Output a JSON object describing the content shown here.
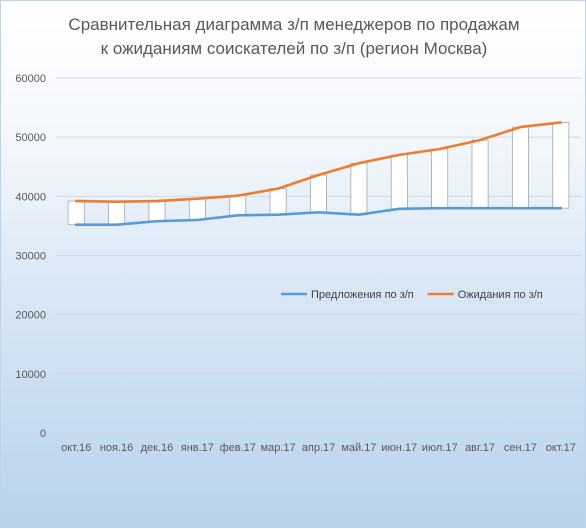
{
  "chart_data": {
    "type": "line",
    "title_line1": "Сравнительная диаграмма з/п менеджеров по продажам",
    "title_line2": "к ожиданиям соискателей по з/п (регион Москва)",
    "categories": [
      "окт.16",
      "ноя.16",
      "дек.16",
      "янв.17",
      "фев.17",
      "мар.17",
      "апр.17",
      "май.17",
      "июн.17",
      "июл.17",
      "авг.17",
      "сен.17",
      "окт.17"
    ],
    "series": [
      {
        "name": "Предложения по з/п",
        "color": "#5b9bd5",
        "values": [
          35200,
          35200,
          35800,
          36000,
          36800,
          36900,
          37300,
          36900,
          37900,
          38000,
          38000,
          38000,
          38000
        ]
      },
      {
        "name": "Ожидания по з/п",
        "color": "#ed7d31",
        "values": [
          39200,
          39100,
          39200,
          39600,
          40100,
          41300,
          43600,
          45600,
          47000,
          48000,
          49500,
          51700,
          52500
        ]
      }
    ],
    "y_ticks": [
      "0",
      "10000",
      "20000",
      "30000",
      "40000",
      "50000",
      "60000"
    ],
    "ylim": [
      0,
      60000
    ],
    "grid": true,
    "up_down_bars": true,
    "legend_position": "right-middle"
  }
}
